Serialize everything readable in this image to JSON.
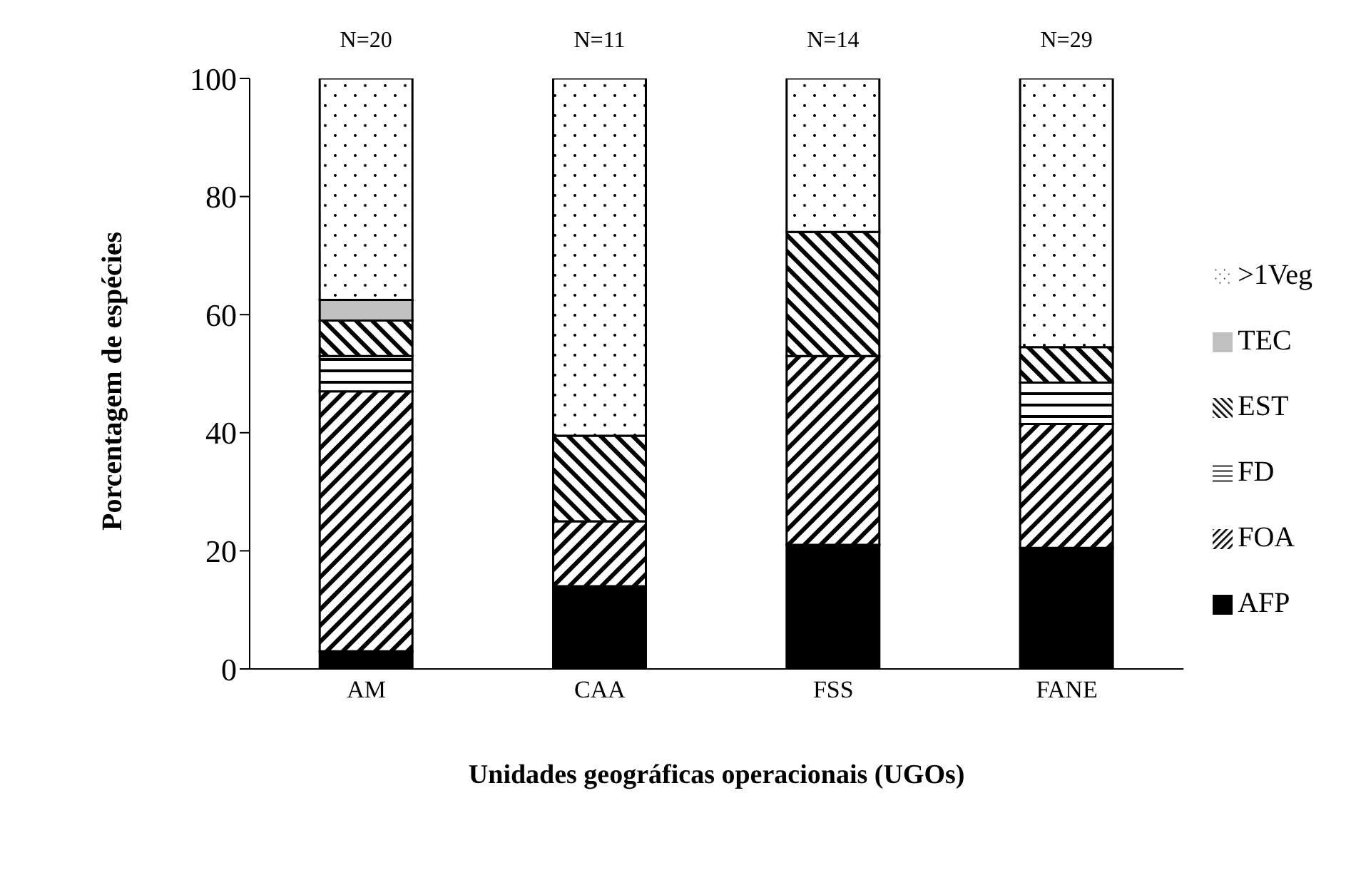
{
  "chart_data": {
    "type": "bar",
    "stacked": true,
    "xlabel": "Unidades geográficas operacionais (UGOs)",
    "ylabel": "Porcentagem de espécies",
    "categories": [
      "AM",
      "CAA",
      "FSS",
      "FANE"
    ],
    "series": [
      {
        "name": "AFP",
        "color": "#000000",
        "values": [
          3,
          14,
          21,
          20.5
        ]
      },
      {
        "name": "FOA",
        "color": "#000000",
        "values": [
          44,
          11,
          32,
          21
        ]
      },
      {
        "name": "FD",
        "color": "#000000",
        "values": [
          6,
          0,
          0,
          7
        ]
      },
      {
        "name": "EST",
        "color": "#000000",
        "values": [
          6,
          14.5,
          21,
          6
        ]
      },
      {
        "name": "TEC",
        "color": "#c0c0c0",
        "values": [
          3.5,
          0,
          0,
          0
        ]
      },
      {
        "name": ">1Veg",
        "color": "#000000",
        "values": [
          37.5,
          60.5,
          26,
          45.5
        ]
      }
    ],
    "ylim": [
      0,
      100
    ],
    "yticks": [
      0,
      20,
      40,
      60,
      80,
      100
    ],
    "grid": false,
    "legend": "right",
    "annotations": [
      "N=20",
      "N=11",
      "N=14",
      "N=29"
    ]
  }
}
